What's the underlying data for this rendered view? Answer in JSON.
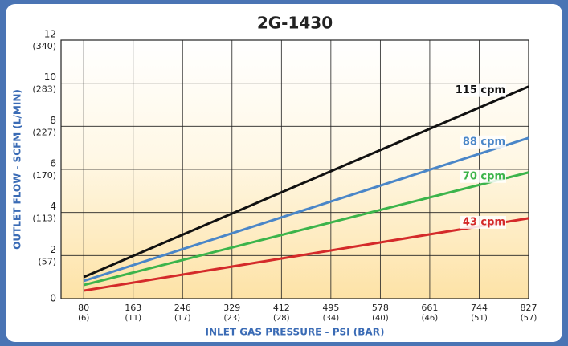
{
  "chart_data": {
    "type": "line",
    "title": "2G-1430",
    "x_label": "INLET GAS PRESSURE - PSI (BAR)",
    "y_label": "OUTLET FLOW - SCFM (L/MIN)",
    "x": [
      80,
      827
    ],
    "xlim": [
      42,
      827
    ],
    "xticks": [
      80,
      163,
      246,
      329,
      412,
      495,
      578,
      661,
      744,
      827
    ],
    "xtick_metric_labels": [
      "(6)",
      "(11)",
      "(17)",
      "(23)",
      "(28)",
      "(34)",
      "(40)",
      "(46)",
      "(51)",
      "(57)"
    ],
    "ylim": [
      0,
      12
    ],
    "yticks": [
      0,
      2,
      4,
      6,
      8,
      10,
      12
    ],
    "ytick_metric_labels": [
      null,
      "(57)",
      "(113)",
      "(170)",
      "(227)",
      "(283)",
      "(340)"
    ],
    "grid": true,
    "series": [
      {
        "name": "115 cpm",
        "color": "#111111",
        "values": [
          1.0,
          9.85
        ]
      },
      {
        "name": "88 cpm",
        "color": "#4a86c8",
        "values": [
          0.82,
          7.46
        ]
      },
      {
        "name": "70 cpm",
        "color": "#3cb44b",
        "values": [
          0.63,
          5.86
        ]
      },
      {
        "name": "43 cpm",
        "color": "#d42a2a",
        "values": [
          0.37,
          3.73
        ]
      }
    ]
  }
}
